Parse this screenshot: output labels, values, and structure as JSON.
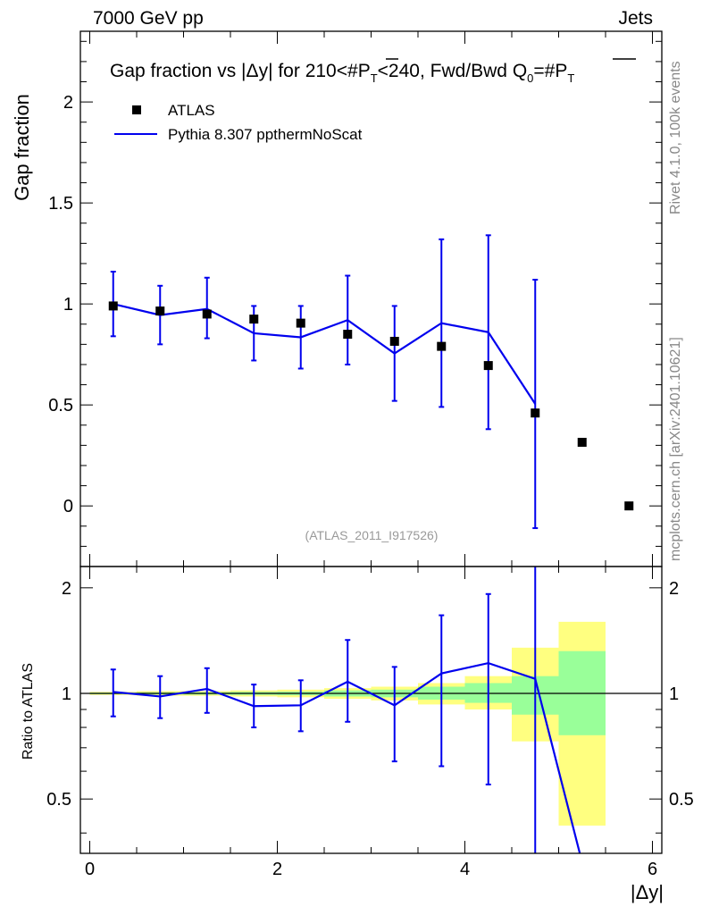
{
  "header": {
    "left": "7000 GeV pp",
    "right": "Jets",
    "side_rivet": "Rivet 4.1.0,  100k events",
    "side_mcplots": "mcplots.cern.ch [arXiv:2401.10621]"
  },
  "chart_data": [
    {
      "type": "scatter",
      "title_parts": {
        "lead": "Gap fraction vs |",
        "delta": "Δ",
        "after_delta": "y| for 210<#",
        "pt": "P",
        "sub_t": "T",
        "mid": "<240, Fwd/Bwd Q",
        "sub_0": "0",
        "eq": "=#",
        "pt2": "P",
        "sub_t2": "T"
      },
      "ylabel": "Gap fraction",
      "xlim": [
        -0.1,
        6.1
      ],
      "ylim": [
        -0.3,
        2.35
      ],
      "yticks": [
        0,
        0.5,
        1,
        1.5,
        2
      ],
      "ytick_labels": [
        "0",
        "0.5",
        "1",
        "1.5",
        "2"
      ],
      "watermark": "(ATLAS_2011_I917526)",
      "legend": {
        "placement": "top-left",
        "data_label": "ATLAS",
        "mc_label": "Pythia 8.307 ppthermNoScat"
      },
      "data_series": {
        "name": "ATLAS",
        "x": [
          0.25,
          0.75,
          1.25,
          1.75,
          2.25,
          2.75,
          3.25,
          3.75,
          4.25,
          4.75,
          5.25,
          5.75
        ],
        "y": [
          0.99,
          0.965,
          0.95,
          0.925,
          0.905,
          0.85,
          0.815,
          0.79,
          0.695,
          0.46,
          0.315,
          0.0
        ]
      },
      "mc_series": {
        "name": "Pythia 8.307 ppthermNoScat",
        "x": [
          0.25,
          0.75,
          1.25,
          1.75,
          2.25,
          2.75,
          3.25,
          3.75,
          4.25,
          4.75
        ],
        "y": [
          1.0,
          0.945,
          0.975,
          0.855,
          0.835,
          0.92,
          0.755,
          0.905,
          0.86,
          0.505
        ],
        "yerr_low": [
          0.84,
          0.8,
          0.83,
          0.72,
          0.68,
          0.7,
          0.52,
          0.49,
          0.38,
          -0.11
        ],
        "yerr_high": [
          1.16,
          1.09,
          1.13,
          0.99,
          0.99,
          1.14,
          0.99,
          1.32,
          1.34,
          1.12
        ]
      }
    },
    {
      "type": "line",
      "ylabel": "Ratio to ATLAS",
      "xlabel_parts": {
        "open": "|",
        "delta": "Δ",
        "close": "y|"
      },
      "xlim": [
        -0.1,
        6.1
      ],
      "ylim": [
        0.35,
        2.3
      ],
      "xticks": [
        0,
        2,
        4,
        6
      ],
      "xtick_labels": [
        "0",
        "2",
        "4",
        "6"
      ],
      "yticks": [
        0.5,
        1,
        2
      ],
      "ytick_labels": [
        "0.5",
        "1",
        "2"
      ],
      "bins": [
        [
          0,
          0.5
        ],
        [
          0.5,
          1
        ],
        [
          1,
          1.5
        ],
        [
          1.5,
          2
        ],
        [
          2,
          2.5
        ],
        [
          2.5,
          3
        ],
        [
          3,
          3.5
        ],
        [
          3.5,
          4
        ],
        [
          4,
          4.5
        ],
        [
          4.5,
          5
        ],
        [
          5,
          5.5
        ]
      ],
      "band_inner": {
        "color": "#99ff99",
        "low": [
          0.995,
          0.993,
          0.992,
          0.99,
          0.988,
          0.98,
          0.975,
          0.96,
          0.94,
          0.87,
          0.76
        ],
        "high": [
          1.005,
          1.007,
          1.008,
          1.01,
          1.012,
          1.02,
          1.025,
          1.045,
          1.07,
          1.12,
          1.32
        ]
      },
      "band_outer": {
        "color": "#ffff80",
        "low": [
          0.99,
          0.985,
          0.985,
          0.98,
          0.975,
          0.965,
          0.955,
          0.93,
          0.9,
          0.73,
          0.42
        ],
        "high": [
          1.01,
          1.015,
          1.015,
          1.02,
          1.025,
          1.035,
          1.045,
          1.07,
          1.12,
          1.35,
          1.6
        ]
      },
      "ratio_series": {
        "name": "Pythia 8.307 ppthermNoScat / ATLAS",
        "x": [
          0.25,
          0.75,
          1.25,
          1.75,
          2.25,
          2.75,
          3.25,
          3.75,
          4.25,
          4.75,
          5.25
        ],
        "y": [
          1.01,
          0.98,
          1.03,
          0.92,
          0.925,
          1.08,
          0.925,
          1.14,
          1.22,
          1.1,
          0.33
        ],
        "yerr_low": [
          0.86,
          0.85,
          0.88,
          0.8,
          0.78,
          0.83,
          0.64,
          0.62,
          0.55,
          0.3,
          null
        ],
        "yerr_high": [
          1.17,
          1.12,
          1.18,
          1.06,
          1.09,
          1.42,
          1.19,
          1.67,
          1.92,
          2.3,
          null
        ]
      },
      "reference_line": 1
    }
  ],
  "colors": {
    "mc_line": "#0000ee",
    "data_marker": "#000000",
    "watermark": "#999999",
    "side_text": "#888888"
  }
}
